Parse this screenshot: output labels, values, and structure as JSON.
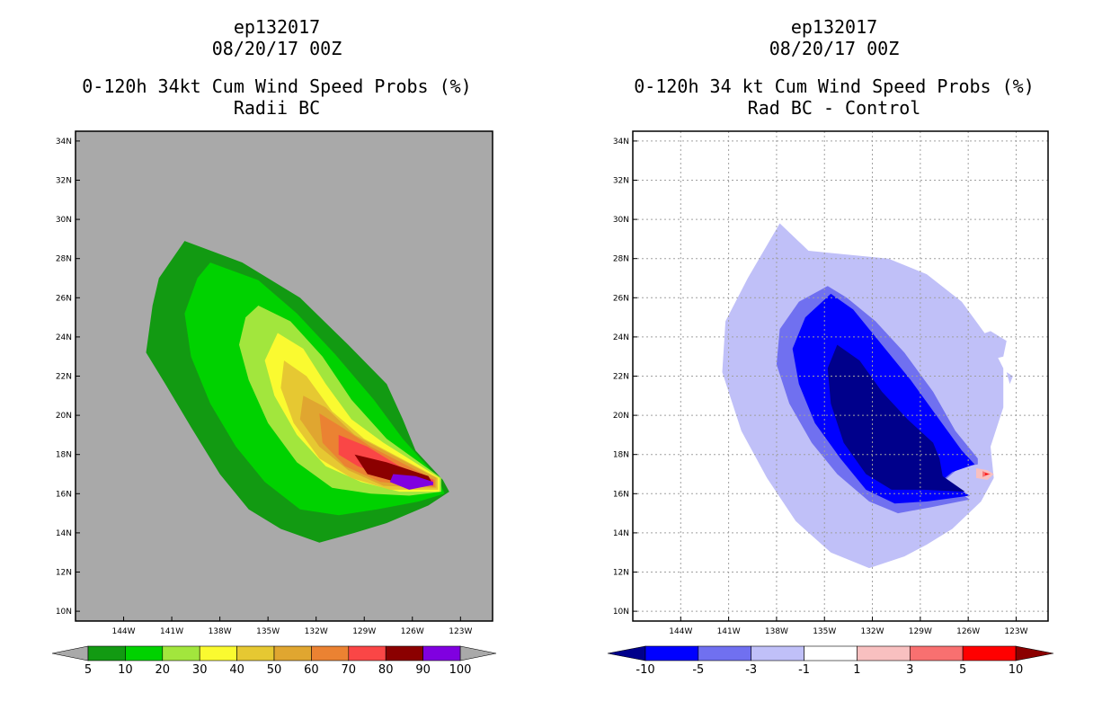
{
  "panels": [
    {
      "title_line1": "ep132017",
      "title_line2": "08/20/17 00Z",
      "title_line3": "0-120h 34kt Cum Wind Speed Probs (%)",
      "title_line4": "Radii BC",
      "background_color": "#a9a9a9",
      "colorbar": {
        "labels": [
          "5",
          "10",
          "20",
          "30",
          "40",
          "50",
          "60",
          "70",
          "80",
          "90",
          "100"
        ],
        "colors": [
          "#129a12",
          "#00d200",
          "#a2e63d",
          "#fafa30",
          "#e6c832",
          "#e0a630",
          "#eb8232",
          "#fa4646",
          "#8b0000",
          "#8000e0"
        ],
        "end_colors": [
          "#a9a9a9",
          "#a9a9a9"
        ]
      }
    },
    {
      "title_line1": "ep132017",
      "title_line2": "08/20/17 00Z",
      "title_line3": "0-120h 34 kt Cum Wind Speed Probs (%)",
      "title_line4": "Rad BC - Control",
      "background_color": "#ffffff",
      "colorbar": {
        "labels": [
          "-10",
          "-5",
          "-3",
          "-1",
          "1",
          "3",
          "5",
          "10"
        ],
        "colors": [
          "#0000ff",
          "#7070f0",
          "#c0c0f8",
          "#ffffff",
          "#f8c0c0",
          "#f87070",
          "#ff0000"
        ],
        "end_colors": [
          "#00008b",
          "#8b0000"
        ]
      }
    }
  ],
  "chart_data": [
    {
      "type": "heatmap",
      "title": "0-120h 34kt Cum Wind Speed Probs (%) Radii BC",
      "x_tick_labels": [
        "144W",
        "141W",
        "138W",
        "135W",
        "132W",
        "129W",
        "126W",
        "123W"
      ],
      "y_tick_labels": [
        "10N",
        "12N",
        "14N",
        "16N",
        "18N",
        "20N",
        "22N",
        "24N",
        "26N",
        "28N",
        "30N",
        "32N",
        "34N"
      ],
      "xlim": [
        -147,
        -121
      ],
      "ylim": [
        9.5,
        34.5
      ],
      "levels": [
        5,
        10,
        20,
        30,
        40,
        50,
        60,
        70,
        80,
        90,
        100
      ],
      "contours": [
        {
          "level": 5,
          "points": [
            [
              -140.2,
              28.9
            ],
            [
              -136.6,
              27.8
            ],
            [
              -133.0,
              26.0
            ],
            [
              -130.0,
              23.6
            ],
            [
              -127.6,
              21.6
            ],
            [
              -126.6,
              19.8
            ],
            [
              -125.8,
              18.2
            ],
            [
              -124.1,
              16.7
            ],
            [
              -123.7,
              16.1
            ],
            [
              -125.0,
              15.4
            ],
            [
              -127.6,
              14.5
            ],
            [
              -129.6,
              14.0
            ],
            [
              -131.8,
              13.5
            ],
            [
              -134.2,
              14.2
            ],
            [
              -136.2,
              15.2
            ],
            [
              -138.0,
              17.0
            ],
            [
              -139.8,
              19.4
            ],
            [
              -141.4,
              21.6
            ],
            [
              -142.6,
              23.2
            ],
            [
              -142.2,
              25.6
            ],
            [
              -141.8,
              27.0
            ]
          ]
        },
        {
          "level": 10,
          "points": [
            [
              -138.6,
              27.8
            ],
            [
              -135.6,
              26.9
            ],
            [
              -133.2,
              25.2
            ],
            [
              -130.8,
              23.1
            ],
            [
              -128.4,
              20.8
            ],
            [
              -126.6,
              18.8
            ],
            [
              -124.4,
              16.8
            ],
            [
              -124.0,
              16.0
            ],
            [
              -125.6,
              15.6
            ],
            [
              -128.2,
              15.2
            ],
            [
              -130.6,
              14.9
            ],
            [
              -133.0,
              15.2
            ],
            [
              -135.2,
              16.6
            ],
            [
              -137.0,
              18.4
            ],
            [
              -138.6,
              20.6
            ],
            [
              -139.8,
              23.0
            ],
            [
              -140.2,
              25.2
            ],
            [
              -139.4,
              27.0
            ]
          ]
        },
        {
          "level": 20,
          "points": [
            [
              -135.6,
              25.6
            ],
            [
              -133.6,
              24.8
            ],
            [
              -131.6,
              23.0
            ],
            [
              -129.8,
              20.8
            ],
            [
              -127.6,
              18.8
            ],
            [
              -124.2,
              16.8
            ],
            [
              -124.2,
              16.1
            ],
            [
              -126.2,
              15.9
            ],
            [
              -128.6,
              16.0
            ],
            [
              -131.0,
              16.3
            ],
            [
              -133.2,
              17.6
            ],
            [
              -135.0,
              19.6
            ],
            [
              -136.2,
              21.8
            ],
            [
              -136.8,
              23.6
            ],
            [
              -136.4,
              25.0
            ]
          ]
        },
        {
          "level": 30,
          "points": [
            [
              -134.4,
              24.2
            ],
            [
              -132.8,
              23.4
            ],
            [
              -131.4,
              21.6
            ],
            [
              -129.8,
              19.8
            ],
            [
              -127.8,
              18.6
            ],
            [
              -124.3,
              16.8
            ],
            [
              -124.3,
              16.1
            ],
            [
              -126.8,
              16.1
            ],
            [
              -129.2,
              16.6
            ],
            [
              -131.4,
              17.4
            ],
            [
              -133.2,
              19.0
            ],
            [
              -134.6,
              21.0
            ],
            [
              -135.2,
              22.8
            ]
          ]
        },
        {
          "level": 40,
          "points": [
            [
              -134.0,
              22.8
            ],
            [
              -132.6,
              22.0
            ],
            [
              -131.0,
              20.2
            ],
            [
              -129.0,
              18.8
            ],
            [
              -124.4,
              16.8
            ],
            [
              -124.4,
              16.2
            ],
            [
              -127.4,
              16.2
            ],
            [
              -129.8,
              16.8
            ],
            [
              -131.8,
              17.8
            ],
            [
              -133.4,
              19.6
            ],
            [
              -134.2,
              21.4
            ]
          ]
        },
        {
          "level": 50,
          "points": [
            [
              -132.8,
              21.0
            ],
            [
              -131.4,
              20.4
            ],
            [
              -129.6,
              19.0
            ],
            [
              -124.5,
              16.8
            ],
            [
              -124.5,
              16.3
            ],
            [
              -127.8,
              16.4
            ],
            [
              -130.0,
              17.2
            ],
            [
              -131.8,
              18.4
            ],
            [
              -133.0,
              19.8
            ]
          ]
        },
        {
          "level": 60,
          "points": [
            [
              -131.8,
              20.1
            ],
            [
              -130.4,
              19.4
            ],
            [
              -128.6,
              18.4
            ],
            [
              -124.6,
              16.7
            ],
            [
              -124.6,
              16.35
            ],
            [
              -128.0,
              16.6
            ],
            [
              -130.2,
              17.4
            ],
            [
              -131.6,
              18.6
            ]
          ]
        },
        {
          "level": 70,
          "points": [
            [
              -130.6,
              19.0
            ],
            [
              -128.8,
              18.4
            ],
            [
              -126.8,
              17.4
            ],
            [
              -124.7,
              16.7
            ],
            [
              -124.7,
              16.4
            ],
            [
              -127.4,
              16.8
            ],
            [
              -129.4,
              17.4
            ],
            [
              -130.6,
              18.0
            ]
          ]
        },
        {
          "level": 80,
          "points": [
            [
              -129.6,
              18.0
            ],
            [
              -127.6,
              17.6
            ],
            [
              -125.0,
              16.9
            ],
            [
              -124.7,
              16.45
            ],
            [
              -127.0,
              16.6
            ],
            [
              -128.8,
              17.0
            ]
          ]
        },
        {
          "level": 90,
          "points": [
            [
              -127.2,
              17.0
            ],
            [
              -125.8,
              16.9
            ],
            [
              -124.7,
              16.6
            ],
            [
              -124.7,
              16.45
            ],
            [
              -126.2,
              16.2
            ],
            [
              -127.4,
              16.6
            ]
          ]
        }
      ]
    },
    {
      "type": "heatmap",
      "title": "0-120h 34 kt Cum Wind Speed Probs (%) Rad BC - Control",
      "x_tick_labels": [
        "144W",
        "141W",
        "138W",
        "135W",
        "132W",
        "129W",
        "126W",
        "123W"
      ],
      "y_tick_labels": [
        "10N",
        "12N",
        "14N",
        "16N",
        "18N",
        "20N",
        "22N",
        "24N",
        "26N",
        "28N",
        "30N",
        "32N",
        "34N"
      ],
      "xlim": [
        -147,
        -121
      ],
      "ylim": [
        9.5,
        34.5
      ],
      "levels": [
        -10,
        -5,
        -3,
        -1,
        1,
        3,
        5,
        10
      ],
      "contours": [
        {
          "level": -1,
          "points": [
            [
              -137.8,
              29.8
            ],
            [
              -136.0,
              28.4
            ],
            [
              -133.6,
              28.2
            ],
            [
              -131.0,
              28.0
            ],
            [
              -128.6,
              27.2
            ],
            [
              -126.4,
              25.8
            ],
            [
              -124.8,
              24.0
            ],
            [
              -123.8,
              22.4
            ],
            [
              -123.8,
              20.4
            ],
            [
              -124.6,
              18.4
            ],
            [
              -124.4,
              16.8
            ],
            [
              -125.2,
              15.6
            ],
            [
              -127.0,
              14.2
            ],
            [
              -128.6,
              13.4
            ],
            [
              -130.0,
              12.8
            ],
            [
              -132.2,
              12.2
            ],
            [
              -134.6,
              13.0
            ],
            [
              -136.8,
              14.6
            ],
            [
              -138.6,
              16.8
            ],
            [
              -140.2,
              19.2
            ],
            [
              -141.4,
              22.2
            ],
            [
              -141.2,
              24.8
            ],
            [
              -139.8,
              27.0
            ]
          ]
        },
        {
          "level": -3,
          "points": [
            [
              -134.8,
              26.6
            ],
            [
              -133.6,
              26.0
            ],
            [
              -131.8,
              24.8
            ],
            [
              -130.0,
              23.2
            ],
            [
              -128.2,
              21.2
            ],
            [
              -126.8,
              19.2
            ],
            [
              -125.4,
              17.8
            ],
            [
              -125.4,
              17.5
            ],
            [
              -126.6,
              17.3
            ],
            [
              -127.6,
              16.6
            ],
            [
              -125.9,
              15.7
            ],
            [
              -128.4,
              15.3
            ],
            [
              -130.4,
              15.0
            ],
            [
              -132.2,
              15.6
            ],
            [
              -134.2,
              17.0
            ],
            [
              -135.8,
              18.6
            ],
            [
              -137.2,
              20.6
            ],
            [
              -138.0,
              22.6
            ],
            [
              -137.8,
              24.4
            ],
            [
              -136.6,
              25.8
            ]
          ]
        },
        {
          "level": -5,
          "points": [
            [
              -134.6,
              26.2
            ],
            [
              -133.2,
              25.4
            ],
            [
              -131.6,
              23.8
            ],
            [
              -129.6,
              21.8
            ],
            [
              -128.0,
              20.0
            ],
            [
              -126.4,
              18.2
            ],
            [
              -125.6,
              17.5
            ],
            [
              -127.0,
              17.1
            ],
            [
              -127.6,
              16.7
            ],
            [
              -125.9,
              15.9
            ],
            [
              -128.6,
              15.6
            ],
            [
              -130.6,
              15.5
            ],
            [
              -132.4,
              16.2
            ],
            [
              -134.0,
              17.8
            ],
            [
              -135.6,
              19.6
            ],
            [
              -136.6,
              21.6
            ],
            [
              -137.0,
              23.4
            ],
            [
              -136.2,
              25.0
            ]
          ]
        },
        {
          "level": -10,
          "points": [
            [
              -134.2,
              23.6
            ],
            [
              -132.8,
              22.8
            ],
            [
              -131.4,
              21.2
            ],
            [
              -129.8,
              19.8
            ],
            [
              -128.2,
              18.6
            ],
            [
              -127.8,
              17.8
            ],
            [
              -127.6,
              16.9
            ],
            [
              -126.2,
              16.1
            ],
            [
              -128.8,
              16.2
            ],
            [
              -130.8,
              16.2
            ],
            [
              -132.4,
              17.0
            ],
            [
              -133.8,
              18.6
            ],
            [
              -134.6,
              20.6
            ],
            [
              -134.8,
              22.4
            ]
          ]
        },
        {
          "level": 1,
          "points": [
            [
              -125.5,
              17.3
            ],
            [
              -124.8,
              17.2
            ],
            [
              -124.4,
              17.0
            ],
            [
              -124.8,
              16.7
            ],
            [
              -125.5,
              16.8
            ]
          ]
        },
        {
          "level": 3,
          "points": [
            [
              -125.1,
              17.15
            ],
            [
              -124.6,
              17.0
            ],
            [
              -125.1,
              16.85
            ]
          ]
        },
        {
          "level": 5,
          "points": [
            [
              -124.95,
              17.05
            ],
            [
              -124.7,
              17.0
            ],
            [
              -124.95,
              16.95
            ]
          ]
        }
      ],
      "extra_contours": [
        {
          "level": -1,
          "points": [
            [
              -140.6,
              25.4
            ],
            [
              -140.2,
              25.8
            ],
            [
              -139.8,
              25.3
            ]
          ]
        },
        {
          "level": -1,
          "points": [
            [
              -125.6,
              24.0
            ],
            [
              -124.6,
              24.3
            ],
            [
              -123.6,
              23.8
            ],
            [
              -123.8,
              23.0
            ],
            [
              -124.8,
              22.8
            ]
          ]
        },
        {
          "level": -1,
          "points": [
            [
              -123.6,
              22.2
            ],
            [
              -123.2,
              22.0
            ],
            [
              -123.4,
              21.6
            ]
          ]
        }
      ]
    }
  ]
}
